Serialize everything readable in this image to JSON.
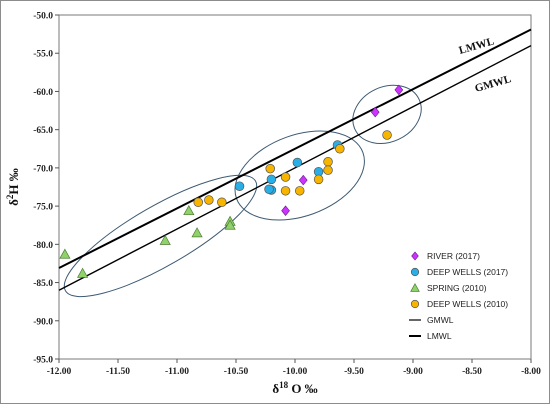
{
  "chart_data": {
    "type": "scatter",
    "xlabel": {
      "main": "δ",
      "sup": "18",
      "rest": " O ‰"
    },
    "ylabel": {
      "main": "δ",
      "sup": "2",
      "rest": "H ‰"
    },
    "xlim": [
      -12.0,
      -8.0
    ],
    "ylim": [
      -95.0,
      -50.0
    ],
    "x_ticks": [
      "-12.00",
      "-11.50",
      "-11.00",
      "-10.50",
      "-10.00",
      "-9.50",
      "-9.00",
      "-8.50",
      "-8.00"
    ],
    "y_ticks": [
      "-95.0",
      "-90.0",
      "-85.0",
      "-80.0",
      "-75.0",
      "-70.0",
      "-65.0",
      "-60.0",
      "-55.0",
      "-50.0"
    ],
    "grid": false,
    "legend_position": "bottom-right",
    "series": [
      {
        "name": "RIVER (2017)",
        "marker": "diamond",
        "color": "#cc33ff",
        "points": [
          [
            -9.12,
            -59.8
          ],
          [
            -9.32,
            -62.7
          ],
          [
            -9.93,
            -71.6
          ],
          [
            -10.08,
            -75.6
          ]
        ]
      },
      {
        "name": "DEEP WELLS (2017)",
        "marker": "circle",
        "color": "#29aee6",
        "points": [
          [
            -10.47,
            -72.4
          ],
          [
            -10.2,
            -71.5
          ],
          [
            -10.2,
            -72.9
          ],
          [
            -10.22,
            -72.8
          ],
          [
            -9.98,
            -69.3
          ],
          [
            -9.8,
            -70.5
          ],
          [
            -9.64,
            -67.0
          ]
        ]
      },
      {
        "name": "SPRING (2010)",
        "marker": "triangle",
        "color": "#8fd16a",
        "points": [
          [
            -11.95,
            -81.3
          ],
          [
            -11.8,
            -83.8
          ],
          [
            -11.1,
            -79.5
          ],
          [
            -10.9,
            -75.6
          ],
          [
            -10.83,
            -78.5
          ],
          [
            -10.55,
            -77.0
          ],
          [
            -10.55,
            -77.5
          ]
        ]
      },
      {
        "name": "DEEP WELLS (2010)",
        "marker": "circle",
        "color": "#f7b500",
        "points": [
          [
            -10.82,
            -74.5
          ],
          [
            -10.73,
            -74.2
          ],
          [
            -10.62,
            -74.5
          ],
          [
            -10.21,
            -70.1
          ],
          [
            -10.08,
            -71.2
          ],
          [
            -10.08,
            -73.0
          ],
          [
            -9.96,
            -73.0
          ],
          [
            -9.8,
            -71.5
          ],
          [
            -9.72,
            -69.2
          ],
          [
            -9.72,
            -70.3
          ],
          [
            -9.62,
            -67.5
          ],
          [
            -9.22,
            -65.7
          ]
        ]
      }
    ],
    "lines": [
      {
        "name": "GMWL",
        "slope": 8,
        "intercept": 10,
        "label": "GMWL"
      },
      {
        "name": "LMWL",
        "slope": 7.8,
        "intercept": 10.5,
        "label": "LMWL"
      }
    ],
    "groups": [
      {
        "cx": -11.14,
        "cy": -78.9,
        "rx": 0.93,
        "ry": 3.9,
        "angle_deg": -30
      },
      {
        "cx": -9.96,
        "cy": -71.0,
        "rx": 0.57,
        "ry": 5.3,
        "angle_deg": -20
      },
      {
        "cx": -9.22,
        "cy": -63.0,
        "rx": 0.3,
        "ry": 3.6,
        "angle_deg": -25
      }
    ]
  },
  "legend": {
    "items": [
      {
        "label": "RIVER (2017)",
        "marker": "diamond",
        "color": "#cc33ff"
      },
      {
        "label": "DEEP WELLS (2017)",
        "marker": "circle",
        "color": "#29aee6"
      },
      {
        "label": "SPRING (2010)",
        "marker": "triangle",
        "color": "#8fd16a"
      },
      {
        "label": "DEEP WELLS (2010)",
        "marker": "circle",
        "color": "#f7b500"
      },
      {
        "label": "GMWL",
        "marker": "line-thin"
      },
      {
        "label": "LMWL",
        "marker": "line-thick"
      }
    ]
  }
}
